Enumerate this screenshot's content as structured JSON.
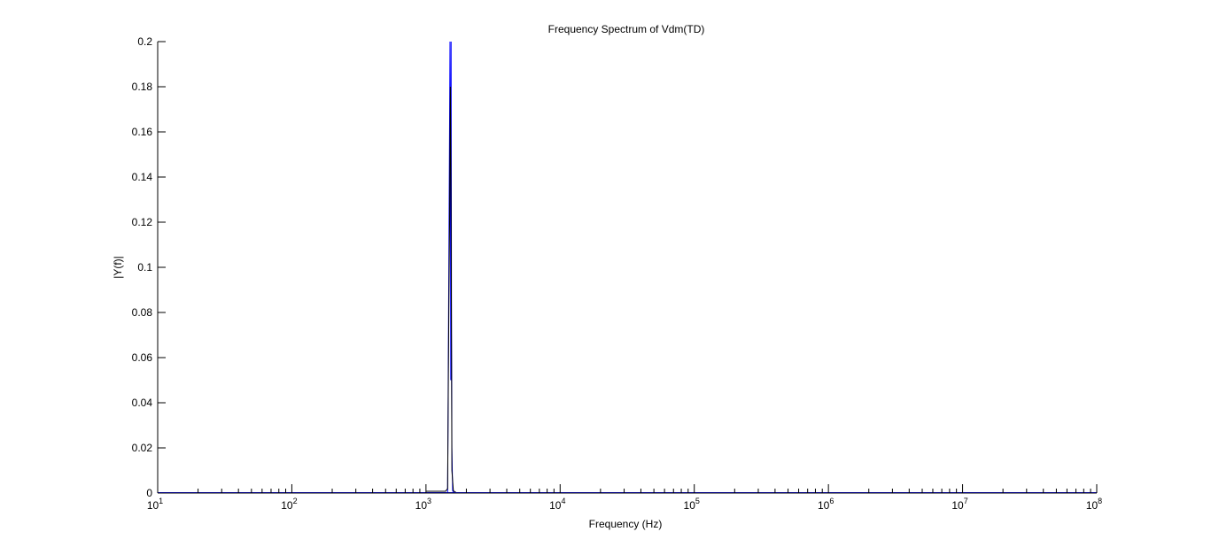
{
  "chart_data": {
    "type": "line",
    "title": "Frequency Spectrum of Vdm(TD)",
    "xlabel": "Frequency (Hz)",
    "ylabel": "|Y(f)|",
    "x_scale": "log",
    "xlim": [
      10,
      100000000
    ],
    "ylim": [
      0,
      0.2
    ],
    "grid": false,
    "x_ticks": [
      {
        "base": "10",
        "exp": "1",
        "value": 10
      },
      {
        "base": "10",
        "exp": "2",
        "value": 100
      },
      {
        "base": "10",
        "exp": "3",
        "value": 1000
      },
      {
        "base": "10",
        "exp": "4",
        "value": 10000
      },
      {
        "base": "10",
        "exp": "5",
        "value": 100000
      },
      {
        "base": "10",
        "exp": "6",
        "value": 1000000
      },
      {
        "base": "10",
        "exp": "7",
        "value": 10000000
      },
      {
        "base": "10",
        "exp": "8",
        "value": 100000000
      }
    ],
    "y_ticks": [
      "0",
      "0.02",
      "0.04",
      "0.06",
      "0.08",
      "0.1",
      "0.12",
      "0.14",
      "0.16",
      "0.18",
      "0.2"
    ],
    "series": [
      {
        "color": "#0000ff",
        "x": [
          1400,
          1450,
          1480,
          1500,
          1510,
          1520,
          1530,
          1540,
          1550,
          1560,
          1580,
          1620,
          1700
        ],
        "y": [
          0,
          0,
          0.1,
          0.166,
          0.2,
          0.15,
          0.05,
          0.2,
          0.07,
          0.02,
          0.001,
          0,
          0
        ]
      },
      {
        "color": "#000000",
        "x": [
          1000,
          1400,
          1450,
          1480,
          1500,
          1520,
          1540,
          1560,
          1600,
          1700
        ],
        "y": [
          0.0008,
          0.0008,
          0.002,
          0.08,
          0.12,
          0.18,
          0.12,
          0.01,
          0.001,
          0
        ]
      }
    ]
  }
}
